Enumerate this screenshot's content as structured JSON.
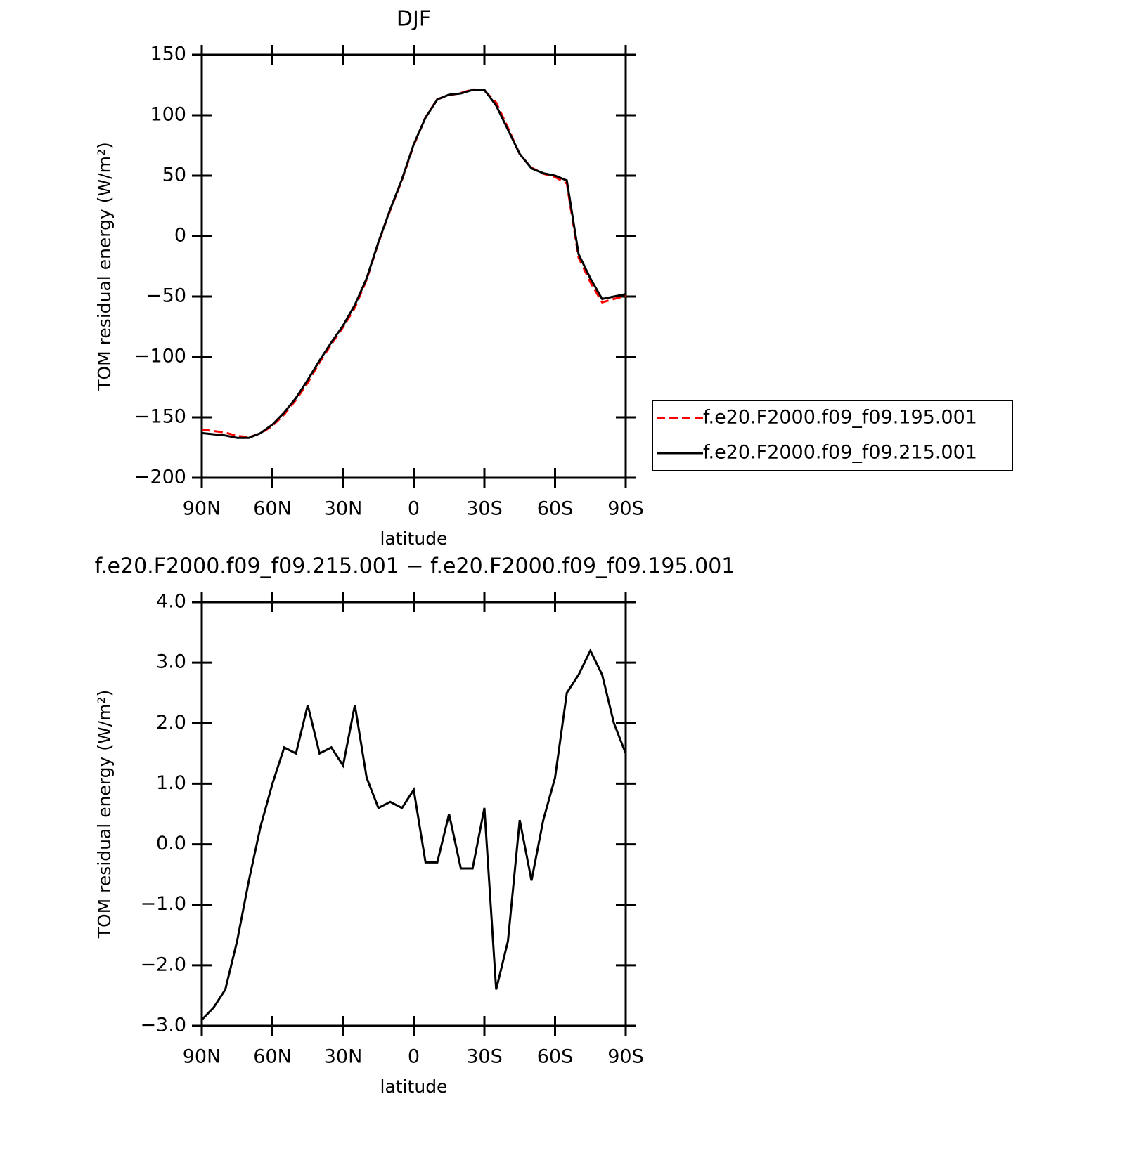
{
  "chart_data": [
    {
      "type": "line",
      "title": "DJF",
      "x_label": "latitude",
      "y_label": "TOM residual energy (W/m²)",
      "x": [
        90,
        85,
        80,
        75,
        70,
        65,
        60,
        55,
        50,
        45,
        40,
        35,
        30,
        25,
        20,
        15,
        10,
        5,
        0,
        -5,
        -10,
        -15,
        -20,
        -25,
        -30,
        -35,
        -40,
        -45,
        -50,
        -55,
        -60,
        -65,
        -70,
        -75,
        -80,
        -85,
        -90
      ],
      "series": [
        {
          "name": "f.e20.F2000.f09_f09.195.001",
          "color": "#ff0000",
          "style": "dashed",
          "values": [
            -160.1,
            -161.3,
            -162.6,
            -165.4,
            -166.4,
            -163.3,
            -157,
            -147.6,
            -135.5,
            -121.3,
            -104.5,
            -89.6,
            -75.3,
            -59.3,
            -36.1,
            -5.6,
            21.3,
            46.4,
            75.1,
            98.3,
            113.3,
            116.5,
            118.4,
            121.4,
            120.4,
            110.4,
            89.6,
            67.6,
            56.6,
            51.6,
            48.9,
            43.5,
            -17.8,
            -38.2,
            -54.8,
            -52,
            -49.5
          ]
        },
        {
          "name": "f.e20.F2000.f09_f09.215.001",
          "color": "#000000",
          "style": "solid",
          "values": [
            -163,
            -164,
            -165,
            -167,
            -167,
            -163,
            -156,
            -146,
            -134,
            -119,
            -103,
            -88,
            -74,
            -57,
            -35,
            -5,
            22,
            47,
            76,
            98,
            113,
            117,
            118,
            121,
            121,
            108,
            88,
            68,
            56,
            52,
            50,
            46,
            -15,
            -35,
            -52,
            -50,
            -48
          ]
        }
      ],
      "xlim": [
        90,
        -90
      ],
      "xticks": [
        {
          "value": 90,
          "label": "90N"
        },
        {
          "value": 60,
          "label": "60N"
        },
        {
          "value": 30,
          "label": "30N"
        },
        0,
        {
          "value": -30,
          "label": "30S"
        },
        {
          "value": -60,
          "label": "60S"
        },
        {
          "value": -90,
          "label": "90S"
        }
      ],
      "ylim": [
        -200,
        150
      ],
      "yticks": [
        {
          "value": -200,
          "label": "−200"
        },
        {
          "value": -150,
          "label": "−150"
        },
        {
          "value": -100,
          "label": "−100"
        },
        {
          "value": -50,
          "label": "−50"
        },
        0,
        50,
        100,
        150
      ],
      "legend": "right"
    },
    {
      "type": "line",
      "title": "f.e20.F2000.f09_f09.215.001 − f.e20.F2000.f09_f09.195.001",
      "x_label": "latitude",
      "y_label": "TOM residual energy (W/m²)",
      "x": [
        90,
        85,
        80,
        75,
        70,
        65,
        60,
        55,
        50,
        45,
        40,
        35,
        30,
        25,
        20,
        15,
        10,
        5,
        0,
        -5,
        -10,
        -15,
        -20,
        -25,
        -30,
        -35,
        -40,
        -45,
        -50,
        -55,
        -60,
        -65,
        -70,
        -75,
        -80,
        -85,
        -90
      ],
      "series": [
        {
          "color": "#000000",
          "style": "solid",
          "values": [
            -2.9,
            -2.7,
            -2.4,
            -1.6,
            -0.6,
            0.3,
            1.0,
            1.6,
            1.5,
            2.3,
            1.5,
            1.6,
            1.3,
            2.3,
            1.1,
            0.6,
            0.7,
            0.6,
            0.9,
            -0.3,
            -0.3,
            0.5,
            -0.4,
            -0.4,
            0.6,
            -2.4,
            -1.6,
            0.4,
            -0.6,
            0.4,
            1.1,
            2.5,
            2.8,
            3.2,
            2.8,
            2.0,
            1.5
          ]
        }
      ],
      "xlim": [
        90,
        -90
      ],
      "xticks": [
        {
          "value": 90,
          "label": "90N"
        },
        {
          "value": 60,
          "label": "60N"
        },
        {
          "value": 30,
          "label": "30N"
        },
        0,
        {
          "value": -30,
          "label": "30S"
        },
        {
          "value": -60,
          "label": "60S"
        },
        {
          "value": -90,
          "label": "90S"
        }
      ],
      "ylim": [
        -3,
        4
      ],
      "yticks": [
        {
          "value": -3,
          "label": "−3.0"
        },
        {
          "value": -2,
          "label": "−2.0"
        },
        {
          "value": -1,
          "label": "−1.0"
        },
        {
          "value": 0,
          "label": "0.0"
        },
        {
          "value": 1,
          "label": "1.0"
        },
        {
          "value": 2,
          "label": "2.0"
        },
        {
          "value": 3,
          "label": "3.0"
        },
        {
          "value": 4,
          "label": "4.0"
        }
      ]
    }
  ]
}
